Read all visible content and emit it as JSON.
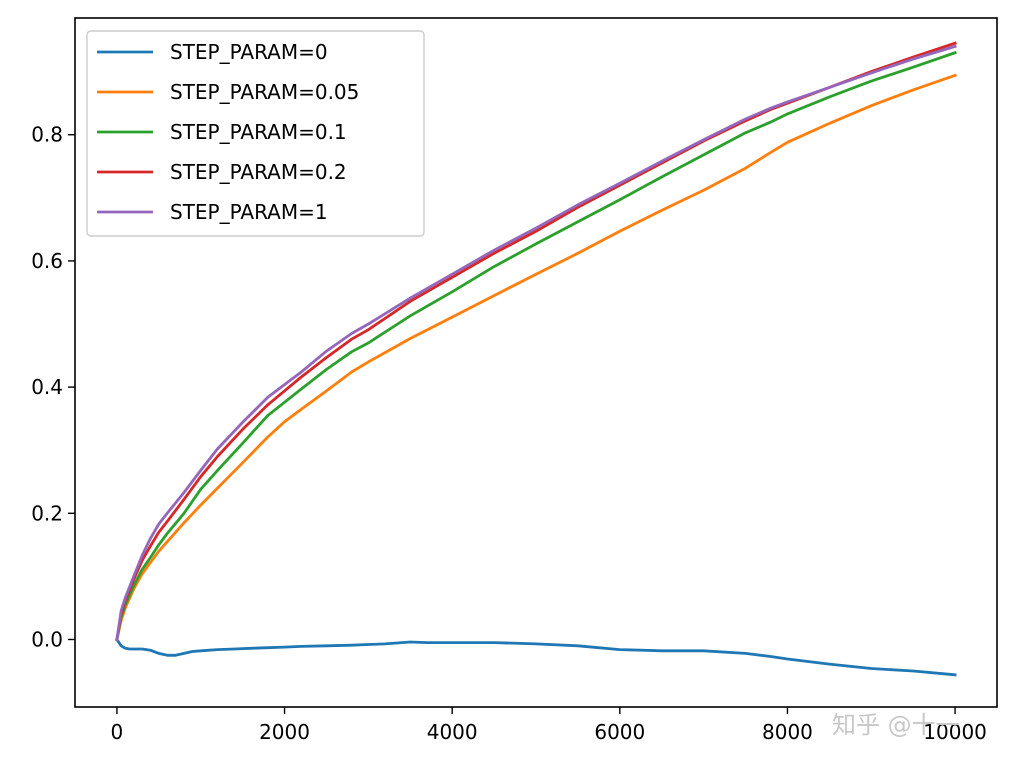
{
  "chart_data": {
    "type": "line",
    "title": "",
    "xlabel": "",
    "ylabel": "",
    "xlim": [
      -500,
      10500
    ],
    "ylim": [
      -0.107,
      0.985
    ],
    "xticks": [
      0,
      2000,
      4000,
      6000,
      8000,
      10000
    ],
    "xtick_labels": [
      "0",
      "2000",
      "4000",
      "6000",
      "8000",
      "10000"
    ],
    "yticks": [
      0.0,
      0.2,
      0.4,
      0.6,
      0.8
    ],
    "ytick_labels": [
      "0.0",
      "0.2",
      "0.4",
      "0.6",
      "0.8"
    ],
    "grid": false,
    "legend_position": "top-left",
    "series": [
      {
        "name": "STEP_PARAM=0",
        "color": "#1f77b4",
        "x": [
          0,
          50,
          100,
          150,
          200,
          300,
          400,
          500,
          600,
          700,
          800,
          900,
          1000,
          1200,
          1400,
          1600,
          1800,
          2000,
          2200,
          2500,
          2800,
          3000,
          3200,
          3400,
          3500,
          3700,
          4000,
          4500,
          5000,
          5500,
          6000,
          6500,
          7000,
          7500,
          7800,
          8000,
          8500,
          9000,
          9500,
          10000
        ],
        "values": [
          0.0,
          -0.01,
          -0.014,
          -0.015,
          -0.015,
          -0.015,
          -0.017,
          -0.022,
          -0.025,
          -0.025,
          -0.022,
          -0.019,
          -0.018,
          -0.016,
          -0.015,
          -0.014,
          -0.013,
          -0.012,
          -0.011,
          -0.01,
          -0.009,
          -0.008,
          -0.007,
          -0.005,
          -0.004,
          -0.005,
          -0.005,
          -0.005,
          -0.007,
          -0.01,
          -0.016,
          -0.018,
          -0.018,
          -0.022,
          -0.027,
          -0.031,
          -0.039,
          -0.046,
          -0.05,
          -0.056
        ]
      },
      {
        "name": "STEP_PARAM=0.05",
        "color": "#ff7f0e",
        "x": [
          0,
          50,
          100,
          200,
          300,
          400,
          500,
          600,
          800,
          1000,
          1200,
          1500,
          1800,
          2000,
          2200,
          2500,
          2800,
          3000,
          3500,
          4000,
          4500,
          5000,
          5500,
          6000,
          6500,
          7000,
          7500,
          7800,
          8000,
          8500,
          9000,
          9500,
          10000
        ],
        "values": [
          0.0,
          0.03,
          0.05,
          0.08,
          0.104,
          0.122,
          0.14,
          0.155,
          0.185,
          0.213,
          0.24,
          0.28,
          0.321,
          0.345,
          0.365,
          0.394,
          0.424,
          0.44,
          0.477,
          0.511,
          0.545,
          0.579,
          0.612,
          0.647,
          0.68,
          0.712,
          0.747,
          0.772,
          0.788,
          0.818,
          0.846,
          0.871,
          0.894
        ]
      },
      {
        "name": "STEP_PARAM=0.1",
        "color": "#2ca02c",
        "x": [
          0,
          50,
          100,
          200,
          300,
          400,
          500,
          600,
          800,
          1000,
          1200,
          1500,
          1800,
          2000,
          2200,
          2500,
          2800,
          3000,
          3500,
          4000,
          4500,
          5000,
          5500,
          6000,
          6500,
          7000,
          7500,
          7800,
          8000,
          8500,
          9000,
          9500,
          10000
        ],
        "values": [
          0.0,
          0.035,
          0.055,
          0.085,
          0.111,
          0.13,
          0.15,
          0.168,
          0.2,
          0.238,
          0.268,
          0.311,
          0.355,
          0.376,
          0.397,
          0.428,
          0.456,
          0.47,
          0.513,
          0.551,
          0.591,
          0.627,
          0.662,
          0.697,
          0.733,
          0.768,
          0.803,
          0.82,
          0.833,
          0.86,
          0.885,
          0.907,
          0.93
        ]
      },
      {
        "name": "STEP_PARAM=0.2",
        "color": "#d62728",
        "x": [
          0,
          50,
          100,
          200,
          300,
          400,
          500,
          600,
          800,
          1000,
          1200,
          1500,
          1800,
          2000,
          2200,
          2500,
          2800,
          3000,
          3500,
          4000,
          4500,
          5000,
          5500,
          6000,
          6500,
          7000,
          7500,
          7800,
          8000,
          8500,
          9000,
          9500,
          10000
        ],
        "values": [
          0.0,
          0.04,
          0.062,
          0.095,
          0.125,
          0.148,
          0.17,
          0.187,
          0.222,
          0.258,
          0.29,
          0.333,
          0.372,
          0.394,
          0.416,
          0.447,
          0.476,
          0.491,
          0.536,
          0.574,
          0.612,
          0.647,
          0.685,
          0.72,
          0.755,
          0.79,
          0.822,
          0.84,
          0.85,
          0.875,
          0.9,
          0.923,
          0.945
        ]
      },
      {
        "name": "STEP_PARAM=1",
        "color": "#9467bd",
        "x": [
          0,
          50,
          100,
          200,
          300,
          400,
          500,
          600,
          800,
          1000,
          1200,
          1500,
          1800,
          2000,
          2200,
          2500,
          2800,
          3000,
          3500,
          4000,
          4500,
          5000,
          5500,
          6000,
          6500,
          7000,
          7500,
          7800,
          8000,
          8500,
          9000,
          9500,
          10000
        ],
        "values": [
          0.0,
          0.045,
          0.066,
          0.1,
          0.133,
          0.16,
          0.183,
          0.2,
          0.233,
          0.268,
          0.302,
          0.344,
          0.384,
          0.404,
          0.424,
          0.457,
          0.485,
          0.5,
          0.541,
          0.579,
          0.617,
          0.652,
          0.689,
          0.723,
          0.758,
          0.792,
          0.825,
          0.842,
          0.852,
          0.875,
          0.898,
          0.92,
          0.94
        ]
      }
    ]
  },
  "watermark": {
    "text": "知乎 @十一"
  }
}
